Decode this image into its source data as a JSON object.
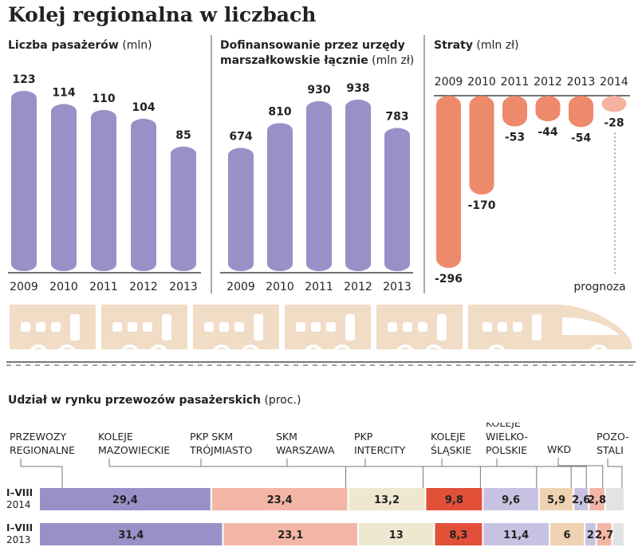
{
  "title": "Kolej regionalna w liczbach",
  "colors": {
    "purple": "#9a90c8",
    "salmon": "#ee8a6c",
    "salmon_light": "#f4b3a0",
    "pink": "#f3b6a6",
    "beige": "#efe7cf",
    "red": "#e2503a",
    "lavender": "#c8c2e2",
    "tan": "#efd2b2",
    "gray": "#e3e3e3",
    "train": "#f1dcc6"
  },
  "chart_data": [
    {
      "type": "bar",
      "title": "Liczba pasażerów",
      "unit": "(mln)",
      "categories": [
        "2009",
        "2010",
        "2011",
        "2012",
        "2013"
      ],
      "values": [
        123,
        114,
        110,
        104,
        85
      ],
      "labels": [
        "123",
        "114",
        "110",
        "104",
        "85"
      ]
    },
    {
      "type": "bar",
      "title": "Dofinansowanie przez urzędy marszałkowskie łącznie",
      "title_line1": "Dofinansowanie przez urzędy",
      "title_line2": "marszałkowskie łącznie",
      "unit": "(mln zł)",
      "categories": [
        "2009",
        "2010",
        "2011",
        "2012",
        "2013"
      ],
      "values": [
        674,
        810,
        930,
        938,
        783
      ],
      "labels": [
        "674",
        "810",
        "930",
        "938",
        "783"
      ]
    },
    {
      "type": "bar",
      "title": "Straty",
      "unit": "(mln zł)",
      "categories": [
        "2009",
        "2010",
        "2011",
        "2012",
        "2013",
        "2014"
      ],
      "values": [
        -296,
        -170,
        -53,
        -44,
        -54,
        -28
      ],
      "labels": [
        "-296",
        "-170",
        "-53",
        "-44",
        "-54",
        "-28"
      ],
      "forecast_index": 5,
      "forecast_label": "prognoza"
    },
    {
      "type": "bar",
      "orientation": "horizontal-stacked",
      "title": "Udział w rynku przewozów pasażerskich",
      "unit": "(proc.)",
      "companies": [
        {
          "line1": "PRZEWOZY",
          "line2": "REGIONALNE",
          "line3": "",
          "color": "#9a90c8"
        },
        {
          "line1": "KOLEJE",
          "line2": "MAZOWIECKIE",
          "line3": "",
          "color": "#f3b6a6"
        },
        {
          "line1": "PKP SKM",
          "line2": "TRÓJMIASTO",
          "line3": "",
          "color": "#efe7cf"
        },
        {
          "line1": "SKM",
          "line2": "WARSZAWA",
          "line3": "",
          "color": "#e2503a"
        },
        {
          "line1": "PKP",
          "line2": "INTERCITY",
          "line3": "",
          "color": "#c8c2e2"
        },
        {
          "line1": "KOLEJE",
          "line2": "ŚLĄSKIE",
          "line3": "",
          "color": "#efd2b2"
        },
        {
          "line1": "KOLEJE",
          "line2": "WIELKO-",
          "line3": "POLSKIE",
          "color": "#c8c2e2"
        },
        {
          "line1": "WKD",
          "line2": "",
          "line3": "",
          "color": "#f3b6a6"
        },
        {
          "line1": "POZO-",
          "line2": "STALI",
          "line3": "",
          "color": "#e3e3e3"
        }
      ],
      "rows": [
        {
          "period": "I–VIII",
          "year": "2014",
          "values": [
            29.4,
            23.4,
            13.2,
            9.8,
            9.6,
            5.9,
            2.6,
            2.8,
            3.3
          ],
          "labels": [
            "29,4",
            "23,4",
            "13,2",
            "9,8",
            "9,6",
            "5,9",
            "2,6",
            "2,8",
            ""
          ]
        },
        {
          "period": "I–VIII",
          "year": "2013",
          "values": [
            31.4,
            23.1,
            13,
            8.3,
            11.4,
            6,
            2,
            2.7,
            2.1
          ],
          "labels": [
            "31,4",
            "23,1",
            "13",
            "8,3",
            "11,4",
            "6",
            "2",
            "2,7",
            ""
          ]
        }
      ]
    }
  ]
}
